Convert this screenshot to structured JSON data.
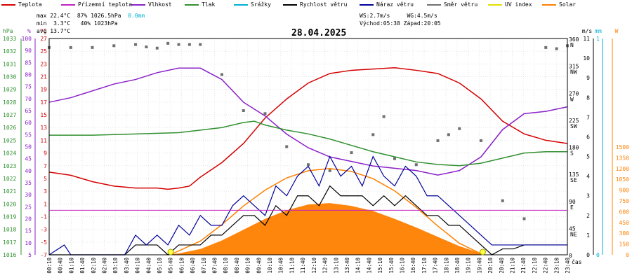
{
  "legend": [
    {
      "label": "Teplota",
      "color": "#d40000"
    },
    {
      "label": "Pŕízemní teplota",
      "color": "#c020c0"
    },
    {
      "label": "Vlhkost",
      "color": "#8a20c8"
    },
    {
      "label": "Tlak",
      "color": "#309030"
    },
    {
      "label": "Srážky",
      "color": "#00b0d0"
    },
    {
      "label": "Rychlost větru",
      "color": "#000000"
    },
    {
      "label": "Náraz větru",
      "color": "#000099"
    },
    {
      "label": "Směr větru",
      "color": "#707070"
    },
    {
      "label": "UV index",
      "color": "#e0e000"
    },
    {
      "label": "Solar",
      "color": "#ff8000"
    }
  ],
  "stats": {
    "max_label": "max",
    "max_temp": "22.4°C",
    "max_hum": "87%",
    "max_press": "1026.5hPa",
    "rain": "0.0mm",
    "min_label": "min",
    "min_temp": "3.3°C",
    "min_hum": "40%",
    "min_press": "1023hPa",
    "avg_label": "avg",
    "avg_temp": "13.7°C",
    "ws": "WS:2.7m/s",
    "wg": "WG:4.5m/s",
    "sunrise": "Východ:05:38",
    "sunset": "Západ:20:05"
  },
  "chart_data": {
    "type": "line",
    "title": "28.04.2025",
    "xlabel": "čas",
    "x_ticks": [
      "00:10",
      "00:40",
      "01:10",
      "01:40",
      "02:10",
      "02:40",
      "03:10",
      "03:40",
      "04:10",
      "04:40",
      "05:10",
      "05:40",
      "06:10",
      "06:40",
      "07:10",
      "07:40",
      "08:10",
      "08:40",
      "09:10",
      "09:40",
      "10:10",
      "10:40",
      "11:10",
      "11:40",
      "12:10",
      "12:40",
      "13:10",
      "13:40",
      "14:10",
      "14:40",
      "15:10",
      "15:40",
      "16:10",
      "16:40",
      "17:10",
      "17:40",
      "18:10",
      "18:40",
      "19:10",
      "19:40",
      "20:10",
      "20:40",
      "21:10",
      "21:40",
      "22:10",
      "22:40",
      "23:10",
      "23:40"
    ],
    "axes": {
      "hpa": {
        "unit": "hPa",
        "color": "#309030",
        "ticks": [
          "1033",
          "1032",
          "1031",
          "1030",
          "1029",
          "1028",
          "1027",
          "1026",
          "1025",
          "1024",
          "1023",
          "1022",
          "1021",
          "1020",
          "1019",
          "1018",
          "1017",
          "1016"
        ]
      },
      "pct": {
        "unit": "%",
        "color": "#8a20c8",
        "ticks": [
          "100",
          "90",
          "85",
          "80",
          "75",
          "70",
          "65",
          "60",
          "55",
          "50",
          "45",
          "40",
          "35",
          "30",
          "25",
          "20",
          "15",
          "10",
          "5"
        ]
      },
      "degc": {
        "unit": "°C",
        "color": "#d40000",
        "ticks": [
          "27",
          "25",
          "23",
          "21",
          "19",
          "17",
          "15",
          "13",
          "11",
          "9",
          "7",
          "5",
          "3",
          "1",
          "-1",
          "-3",
          "-5",
          "-7"
        ]
      },
      "dir": {
        "ticks": [
          "360 N",
          "315 NW",
          "270 W",
          "225 SW",
          "180 S",
          "135 SE",
          "90 E",
          "45 NE",
          "0"
        ]
      },
      "ms": {
        "unit": "m/s",
        "ticks": [
          "11",
          "10",
          "9",
          "8",
          "7",
          "6",
          "5",
          "4",
          "3",
          "2",
          "1",
          "0"
        ]
      },
      "mm": {
        "unit": "mm",
        "ticks": [
          "1",
          "0"
        ]
      },
      "w": {
        "unit": "W",
        "ticks": [
          "1500",
          "1350",
          "1200",
          "1050",
          "900",
          "750",
          "600",
          "450",
          "300",
          "150",
          "0"
        ]
      }
    },
    "series": [
      {
        "name": "Teplota",
        "unit": "°C",
        "color": "#d40000",
        "x": [
          0,
          1,
          2,
          3,
          4,
          5,
          5.5,
          6,
          6.5,
          7,
          8,
          9,
          10,
          11,
          12,
          13,
          14,
          15,
          16,
          17,
          18,
          19,
          20,
          21,
          22,
          23,
          24
        ],
        "y": [
          6,
          5.5,
          4.5,
          3.8,
          3.5,
          3.5,
          3.3,
          3.5,
          3.8,
          5.2,
          7.5,
          10.5,
          14.5,
          17.5,
          20,
          21.5,
          22,
          22.2,
          22.4,
          22,
          21.5,
          20,
          17.5,
          14,
          12,
          11,
          10.5
        ]
      },
      {
        "name": "Vlhkost",
        "unit": "%",
        "color": "#8a20c8",
        "x": [
          0,
          1,
          2,
          3,
          4,
          5,
          6,
          7,
          8,
          9,
          10,
          11,
          12,
          13,
          14,
          15,
          16,
          17,
          18,
          19,
          20,
          21,
          22,
          23,
          24
        ],
        "y": [
          72,
          74,
          77,
          80,
          82,
          85,
          87,
          87,
          82,
          72,
          66,
          58,
          52,
          48,
          46,
          44,
          43,
          42,
          40,
          42,
          48,
          60,
          67,
          68,
          70
        ]
      },
      {
        "name": "Tlak",
        "unit": "hPa",
        "color": "#309030",
        "x": [
          0,
          2,
          4,
          6,
          8,
          9,
          9.5,
          10,
          11,
          12,
          13,
          14,
          15,
          16,
          17,
          18,
          19,
          20,
          21,
          22,
          23,
          24
        ],
        "y": [
          1025.4,
          1025.4,
          1025.5,
          1025.6,
          1026,
          1026.4,
          1026.5,
          1026.2,
          1025.8,
          1025.5,
          1025.1,
          1024.6,
          1024.1,
          1023.7,
          1023.3,
          1023.1,
          1023,
          1023.2,
          1023.6,
          1024,
          1024.1,
          1024.1
        ]
      },
      {
        "name": "Rychlost větru",
        "unit": "m/s",
        "color": "#000000",
        "x": [
          0,
          3.5,
          4,
          4.5,
          5,
          5.5,
          6,
          6.5,
          7,
          7.5,
          8,
          8.5,
          9,
          9.5,
          10,
          10.5,
          11,
          11.5,
          12,
          12.5,
          13,
          13.5,
          14,
          14.5,
          15,
          15.5,
          16,
          16.5,
          17,
          17.5,
          18,
          18.5,
          19,
          19.5,
          20,
          20.5,
          21,
          21.5,
          22,
          22.5,
          23,
          23.5,
          24
        ],
        "y": [
          0,
          0,
          0.5,
          0.5,
          0.5,
          0,
          0.5,
          0.5,
          0.5,
          1,
          1,
          1.5,
          2,
          2,
          1.5,
          2.5,
          2,
          3,
          3,
          2.5,
          3.5,
          3,
          3,
          3,
          2.5,
          3,
          2.5,
          3,
          2.5,
          2,
          2,
          1.5,
          1.5,
          1,
          0.5,
          0,
          0.3,
          0.3,
          0.5,
          0.5,
          0.5,
          0.5,
          0.5
        ]
      },
      {
        "name": "Náraz větru",
        "unit": "m/s",
        "color": "#000099",
        "x": [
          0,
          0.7,
          1,
          3.5,
          4,
          4.5,
          5,
          5.5,
          6,
          6.5,
          7,
          7.5,
          8,
          8.5,
          9,
          9.5,
          10,
          10.5,
          11,
          11.5,
          12,
          12.5,
          13,
          13.5,
          14,
          14.5,
          15,
          15.5,
          16,
          16.5,
          17,
          17.5,
          18,
          18.5,
          19,
          19.5,
          20,
          20.5,
          21,
          21.5,
          22,
          22.5,
          23,
          23.5,
          24
        ],
        "y": [
          0,
          0.5,
          0,
          0,
          1,
          0.5,
          1,
          0.5,
          1.5,
          1,
          2,
          1.5,
          1.5,
          2.5,
          3,
          2.5,
          2,
          3.5,
          3,
          4,
          4.5,
          3.5,
          5,
          4,
          4.5,
          3.5,
          5,
          4,
          3.5,
          4.5,
          4,
          3,
          3,
          2.5,
          2,
          1.5,
          1,
          0.5,
          0.5,
          0.5,
          0.5,
          0.5,
          0.5,
          0.5,
          0.5
        ]
      },
      {
        "name": "Solar",
        "unit": "W",
        "color": "#ff8000",
        "x": [
          5.5,
          6,
          7,
          8,
          9,
          10,
          11,
          12,
          13,
          14,
          15,
          16,
          17,
          18,
          19,
          20,
          20.1
        ],
        "y": [
          0,
          20,
          80,
          200,
          350,
          500,
          620,
          700,
          720,
          680,
          610,
          500,
          380,
          250,
          120,
          20,
          0
        ]
      },
      {
        "name": "Solar max",
        "unit": "W",
        "color": "#ff8000",
        "x": [
          5.6,
          7,
          8,
          9,
          10,
          11,
          12,
          13,
          14,
          15,
          16,
          17,
          18,
          19,
          20.1
        ],
        "y": [
          0,
          190,
          420,
          680,
          900,
          1070,
          1170,
          1200,
          1160,
          1060,
          890,
          660,
          400,
          160,
          0
        ]
      },
      {
        "name": "Směr větru",
        "unit": "°",
        "color": "#707070",
        "x": [
          0,
          1,
          2,
          3,
          4,
          4.5,
          5,
          5.5,
          6,
          6.5,
          7,
          8,
          9,
          10,
          11,
          12,
          13,
          14,
          15,
          15.5,
          16,
          17,
          18,
          18.5,
          19,
          20,
          21,
          22,
          23,
          23.5,
          24
        ],
        "y": [
          345,
          345,
          345,
          348,
          350,
          346,
          344,
          352,
          350,
          350,
          350,
          300,
          240,
          235,
          180,
          150,
          140,
          170,
          200,
          230,
          160,
          150,
          190,
          200,
          210,
          190,
          90,
          60,
          345,
          343,
          348
        ]
      }
    ]
  }
}
